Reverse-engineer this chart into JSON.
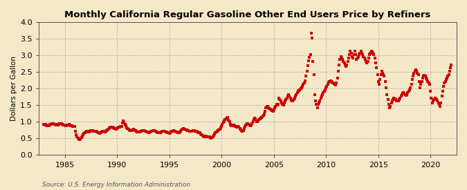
{
  "title": "Monthly California Regular Gasoline Other End Users Price by Refiners",
  "ylabel": "Dollars per Gallon",
  "source": "Source: U.S. Energy Information Administration",
  "background_color": "#f5e8c8",
  "marker_color": "#cc0000",
  "xlim_start": 1982.5,
  "xlim_end": 2022.5,
  "ylim": [
    0.0,
    4.0
  ],
  "yticks": [
    0.0,
    0.5,
    1.0,
    1.5,
    2.0,
    2.5,
    3.0,
    3.5,
    4.0
  ],
  "xticks": [
    1985,
    1990,
    1995,
    2000,
    2005,
    2010,
    2015,
    2020
  ],
  "data": [
    [
      1983.0,
      0.92
    ],
    [
      1983.08,
      0.91
    ],
    [
      1983.17,
      0.93
    ],
    [
      1983.25,
      0.9
    ],
    [
      1983.33,
      0.89
    ],
    [
      1983.42,
      0.88
    ],
    [
      1983.5,
      0.89
    ],
    [
      1983.58,
      0.92
    ],
    [
      1983.67,
      0.93
    ],
    [
      1983.75,
      0.94
    ],
    [
      1983.83,
      0.95
    ],
    [
      1983.92,
      0.94
    ],
    [
      1984.0,
      0.93
    ],
    [
      1984.08,
      0.92
    ],
    [
      1984.17,
      0.91
    ],
    [
      1984.25,
      0.92
    ],
    [
      1984.33,
      0.91
    ],
    [
      1984.42,
      0.93
    ],
    [
      1984.5,
      0.94
    ],
    [
      1984.58,
      0.95
    ],
    [
      1984.67,
      0.94
    ],
    [
      1984.75,
      0.92
    ],
    [
      1984.83,
      0.91
    ],
    [
      1984.92,
      0.9
    ],
    [
      1985.0,
      0.9
    ],
    [
      1985.08,
      0.89
    ],
    [
      1985.17,
      0.89
    ],
    [
      1985.25,
      0.9
    ],
    [
      1985.33,
      0.91
    ],
    [
      1985.42,
      0.92
    ],
    [
      1985.5,
      0.91
    ],
    [
      1985.58,
      0.89
    ],
    [
      1985.67,
      0.88
    ],
    [
      1985.75,
      0.87
    ],
    [
      1985.83,
      0.87
    ],
    [
      1985.92,
      0.86
    ],
    [
      1986.0,
      0.72
    ],
    [
      1986.08,
      0.62
    ],
    [
      1986.17,
      0.55
    ],
    [
      1986.25,
      0.5
    ],
    [
      1986.33,
      0.48
    ],
    [
      1986.42,
      0.47
    ],
    [
      1986.5,
      0.48
    ],
    [
      1986.58,
      0.52
    ],
    [
      1986.67,
      0.57
    ],
    [
      1986.75,
      0.62
    ],
    [
      1986.83,
      0.65
    ],
    [
      1986.92,
      0.68
    ],
    [
      1987.0,
      0.7
    ],
    [
      1987.08,
      0.72
    ],
    [
      1987.17,
      0.71
    ],
    [
      1987.25,
      0.7
    ],
    [
      1987.33,
      0.69
    ],
    [
      1987.42,
      0.71
    ],
    [
      1987.5,
      0.73
    ],
    [
      1987.58,
      0.74
    ],
    [
      1987.67,
      0.73
    ],
    [
      1987.75,
      0.72
    ],
    [
      1987.83,
      0.71
    ],
    [
      1987.92,
      0.72
    ],
    [
      1988.0,
      0.71
    ],
    [
      1988.08,
      0.7
    ],
    [
      1988.17,
      0.68
    ],
    [
      1988.25,
      0.67
    ],
    [
      1988.33,
      0.66
    ],
    [
      1988.42,
      0.67
    ],
    [
      1988.5,
      0.69
    ],
    [
      1988.58,
      0.71
    ],
    [
      1988.67,
      0.72
    ],
    [
      1988.75,
      0.71
    ],
    [
      1988.83,
      0.7
    ],
    [
      1988.92,
      0.71
    ],
    [
      1989.0,
      0.73
    ],
    [
      1989.08,
      0.76
    ],
    [
      1989.17,
      0.78
    ],
    [
      1989.25,
      0.81
    ],
    [
      1989.33,
      0.83
    ],
    [
      1989.42,
      0.84
    ],
    [
      1989.5,
      0.85
    ],
    [
      1989.58,
      0.84
    ],
    [
      1989.67,
      0.82
    ],
    [
      1989.75,
      0.8
    ],
    [
      1989.83,
      0.79
    ],
    [
      1989.92,
      0.78
    ],
    [
      1990.0,
      0.8
    ],
    [
      1990.08,
      0.82
    ],
    [
      1990.17,
      0.84
    ],
    [
      1990.25,
      0.85
    ],
    [
      1990.33,
      0.86
    ],
    [
      1990.42,
      0.87
    ],
    [
      1990.5,
      0.96
    ],
    [
      1990.58,
      1.02
    ],
    [
      1990.67,
      0.98
    ],
    [
      1990.75,
      0.93
    ],
    [
      1990.83,
      0.88
    ],
    [
      1990.92,
      0.83
    ],
    [
      1991.0,
      0.79
    ],
    [
      1991.08,
      0.77
    ],
    [
      1991.17,
      0.75
    ],
    [
      1991.25,
      0.74
    ],
    [
      1991.33,
      0.73
    ],
    [
      1991.42,
      0.74
    ],
    [
      1991.5,
      0.76
    ],
    [
      1991.58,
      0.77
    ],
    [
      1991.67,
      0.76
    ],
    [
      1991.75,
      0.74
    ],
    [
      1991.83,
      0.72
    ],
    [
      1991.92,
      0.7
    ],
    [
      1992.0,
      0.69
    ],
    [
      1992.08,
      0.69
    ],
    [
      1992.17,
      0.7
    ],
    [
      1992.25,
      0.71
    ],
    [
      1992.33,
      0.72
    ],
    [
      1992.42,
      0.73
    ],
    [
      1992.5,
      0.74
    ],
    [
      1992.58,
      0.73
    ],
    [
      1992.67,
      0.72
    ],
    [
      1992.75,
      0.71
    ],
    [
      1992.83,
      0.7
    ],
    [
      1992.92,
      0.69
    ],
    [
      1993.0,
      0.68
    ],
    [
      1993.08,
      0.69
    ],
    [
      1993.17,
      0.7
    ],
    [
      1993.25,
      0.72
    ],
    [
      1993.33,
      0.72
    ],
    [
      1993.42,
      0.73
    ],
    [
      1993.5,
      0.74
    ],
    [
      1993.58,
      0.73
    ],
    [
      1993.67,
      0.71
    ],
    [
      1993.75,
      0.7
    ],
    [
      1993.83,
      0.69
    ],
    [
      1993.92,
      0.68
    ],
    [
      1994.0,
      0.67
    ],
    [
      1994.08,
      0.67
    ],
    [
      1994.17,
      0.68
    ],
    [
      1994.25,
      0.7
    ],
    [
      1994.33,
      0.71
    ],
    [
      1994.42,
      0.72
    ],
    [
      1994.5,
      0.72
    ],
    [
      1994.58,
      0.71
    ],
    [
      1994.67,
      0.7
    ],
    [
      1994.75,
      0.69
    ],
    [
      1994.83,
      0.68
    ],
    [
      1994.92,
      0.67
    ],
    [
      1995.0,
      0.66
    ],
    [
      1995.08,
      0.67
    ],
    [
      1995.17,
      0.69
    ],
    [
      1995.25,
      0.71
    ],
    [
      1995.33,
      0.72
    ],
    [
      1995.42,
      0.73
    ],
    [
      1995.5,
      0.72
    ],
    [
      1995.58,
      0.71
    ],
    [
      1995.67,
      0.7
    ],
    [
      1995.75,
      0.69
    ],
    [
      1995.83,
      0.68
    ],
    [
      1995.92,
      0.67
    ],
    [
      1996.0,
      0.69
    ],
    [
      1996.08,
      0.72
    ],
    [
      1996.17,
      0.75
    ],
    [
      1996.25,
      0.78
    ],
    [
      1996.33,
      0.79
    ],
    [
      1996.42,
      0.78
    ],
    [
      1996.5,
      0.77
    ],
    [
      1996.58,
      0.76
    ],
    [
      1996.67,
      0.75
    ],
    [
      1996.75,
      0.74
    ],
    [
      1996.83,
      0.73
    ],
    [
      1996.92,
      0.72
    ],
    [
      1997.0,
      0.71
    ],
    [
      1997.08,
      0.71
    ],
    [
      1997.17,
      0.72
    ],
    [
      1997.25,
      0.74
    ],
    [
      1997.33,
      0.74
    ],
    [
      1997.42,
      0.73
    ],
    [
      1997.5,
      0.72
    ],
    [
      1997.58,
      0.71
    ],
    [
      1997.67,
      0.7
    ],
    [
      1997.75,
      0.69
    ],
    [
      1997.83,
      0.68
    ],
    [
      1997.92,
      0.67
    ],
    [
      1998.0,
      0.64
    ],
    [
      1998.08,
      0.61
    ],
    [
      1998.17,
      0.59
    ],
    [
      1998.25,
      0.57
    ],
    [
      1998.33,
      0.56
    ],
    [
      1998.42,
      0.56
    ],
    [
      1998.5,
      0.57
    ],
    [
      1998.58,
      0.56
    ],
    [
      1998.67,
      0.56
    ],
    [
      1998.75,
      0.55
    ],
    [
      1998.83,
      0.54
    ],
    [
      1998.92,
      0.52
    ],
    [
      1999.0,
      0.51
    ],
    [
      1999.08,
      0.52
    ],
    [
      1999.17,
      0.54
    ],
    [
      1999.25,
      0.59
    ],
    [
      1999.33,
      0.64
    ],
    [
      1999.42,
      0.67
    ],
    [
      1999.5,
      0.69
    ],
    [
      1999.58,
      0.71
    ],
    [
      1999.67,
      0.73
    ],
    [
      1999.75,
      0.75
    ],
    [
      1999.83,
      0.77
    ],
    [
      1999.92,
      0.81
    ],
    [
      2000.0,
      0.86
    ],
    [
      2000.08,
      0.92
    ],
    [
      2000.17,
      0.98
    ],
    [
      2000.25,
      1.02
    ],
    [
      2000.33,
      1.06
    ],
    [
      2000.42,
      1.09
    ],
    [
      2000.5,
      1.11
    ],
    [
      2000.58,
      1.13
    ],
    [
      2000.67,
      1.04
    ],
    [
      2000.75,
      1.0
    ],
    [
      2000.83,
      0.93
    ],
    [
      2000.92,
      0.88
    ],
    [
      2001.0,
      0.88
    ],
    [
      2001.08,
      0.9
    ],
    [
      2001.17,
      0.91
    ],
    [
      2001.25,
      0.88
    ],
    [
      2001.33,
      0.86
    ],
    [
      2001.42,
      0.84
    ],
    [
      2001.5,
      0.86
    ],
    [
      2001.58,
      0.87
    ],
    [
      2001.67,
      0.85
    ],
    [
      2001.75,
      0.8
    ],
    [
      2001.83,
      0.76
    ],
    [
      2001.92,
      0.73
    ],
    [
      2002.0,
      0.72
    ],
    [
      2002.08,
      0.74
    ],
    [
      2002.17,
      0.79
    ],
    [
      2002.25,
      0.87
    ],
    [
      2002.33,
      0.91
    ],
    [
      2002.42,
      0.94
    ],
    [
      2002.5,
      0.94
    ],
    [
      2002.58,
      0.92
    ],
    [
      2002.67,
      0.91
    ],
    [
      2002.75,
      0.89
    ],
    [
      2002.83,
      0.91
    ],
    [
      2002.92,
      0.95
    ],
    [
      2003.0,
      1.01
    ],
    [
      2003.08,
      1.07
    ],
    [
      2003.17,
      1.12
    ],
    [
      2003.25,
      1.09
    ],
    [
      2003.33,
      1.01
    ],
    [
      2003.42,
      1.01
    ],
    [
      2003.5,
      1.03
    ],
    [
      2003.58,
      1.06
    ],
    [
      2003.67,
      1.08
    ],
    [
      2003.75,
      1.11
    ],
    [
      2003.83,
      1.13
    ],
    [
      2003.92,
      1.16
    ],
    [
      2004.0,
      1.19
    ],
    [
      2004.08,
      1.24
    ],
    [
      2004.17,
      1.32
    ],
    [
      2004.25,
      1.43
    ],
    [
      2004.33,
      1.47
    ],
    [
      2004.42,
      1.46
    ],
    [
      2004.5,
      1.43
    ],
    [
      2004.58,
      1.41
    ],
    [
      2004.67,
      1.39
    ],
    [
      2004.75,
      1.36
    ],
    [
      2004.83,
      1.33
    ],
    [
      2004.92,
      1.31
    ],
    [
      2005.0,
      1.36
    ],
    [
      2005.08,
      1.42
    ],
    [
      2005.17,
      1.47
    ],
    [
      2005.25,
      1.52
    ],
    [
      2005.33,
      1.5
    ],
    [
      2005.42,
      1.52
    ],
    [
      2005.5,
      1.71
    ],
    [
      2005.58,
      1.67
    ],
    [
      2005.67,
      1.62
    ],
    [
      2005.75,
      1.57
    ],
    [
      2005.83,
      1.52
    ],
    [
      2005.92,
      1.51
    ],
    [
      2006.0,
      1.56
    ],
    [
      2006.08,
      1.62
    ],
    [
      2006.17,
      1.67
    ],
    [
      2006.25,
      1.72
    ],
    [
      2006.33,
      1.77
    ],
    [
      2006.42,
      1.82
    ],
    [
      2006.5,
      1.77
    ],
    [
      2006.58,
      1.72
    ],
    [
      2006.67,
      1.66
    ],
    [
      2006.75,
      1.63
    ],
    [
      2006.83,
      1.64
    ],
    [
      2006.92,
      1.67
    ],
    [
      2007.0,
      1.72
    ],
    [
      2007.08,
      1.77
    ],
    [
      2007.17,
      1.82
    ],
    [
      2007.25,
      1.87
    ],
    [
      2007.33,
      1.92
    ],
    [
      2007.42,
      1.95
    ],
    [
      2007.5,
      1.97
    ],
    [
      2007.58,
      2.0
    ],
    [
      2007.67,
      2.02
    ],
    [
      2007.75,
      2.07
    ],
    [
      2007.83,
      2.13
    ],
    [
      2007.92,
      2.18
    ],
    [
      2008.0,
      2.23
    ],
    [
      2008.08,
      2.38
    ],
    [
      2008.17,
      2.53
    ],
    [
      2008.25,
      2.68
    ],
    [
      2008.33,
      2.83
    ],
    [
      2008.42,
      2.93
    ],
    [
      2008.5,
      3.03
    ],
    [
      2008.58,
      3.67
    ],
    [
      2008.67,
      3.52
    ],
    [
      2008.75,
      2.82
    ],
    [
      2008.83,
      2.42
    ],
    [
      2008.92,
      1.82
    ],
    [
      2009.0,
      1.62
    ],
    [
      2009.08,
      1.52
    ],
    [
      2009.17,
      1.42
    ],
    [
      2009.25,
      1.52
    ],
    [
      2009.33,
      1.57
    ],
    [
      2009.42,
      1.62
    ],
    [
      2009.5,
      1.72
    ],
    [
      2009.58,
      1.77
    ],
    [
      2009.67,
      1.82
    ],
    [
      2009.75,
      1.87
    ],
    [
      2009.83,
      1.92
    ],
    [
      2009.92,
      1.97
    ],
    [
      2010.0,
      2.02
    ],
    [
      2010.08,
      2.07
    ],
    [
      2010.17,
      2.12
    ],
    [
      2010.25,
      2.2
    ],
    [
      2010.33,
      2.22
    ],
    [
      2010.42,
      2.24
    ],
    [
      2010.5,
      2.22
    ],
    [
      2010.58,
      2.2
    ],
    [
      2010.67,
      2.17
    ],
    [
      2010.75,
      2.14
    ],
    [
      2010.83,
      2.12
    ],
    [
      2010.92,
      2.1
    ],
    [
      2011.0,
      2.17
    ],
    [
      2011.08,
      2.32
    ],
    [
      2011.17,
      2.52
    ],
    [
      2011.25,
      2.72
    ],
    [
      2011.33,
      2.87
    ],
    [
      2011.42,
      2.97
    ],
    [
      2011.5,
      2.92
    ],
    [
      2011.58,
      2.87
    ],
    [
      2011.67,
      2.82
    ],
    [
      2011.75,
      2.77
    ],
    [
      2011.83,
      2.72
    ],
    [
      2011.92,
      2.67
    ],
    [
      2012.0,
      2.72
    ],
    [
      2012.08,
      2.82
    ],
    [
      2012.17,
      2.92
    ],
    [
      2012.25,
      3.02
    ],
    [
      2012.33,
      3.12
    ],
    [
      2012.42,
      3.07
    ],
    [
      2012.5,
      2.97
    ],
    [
      2012.58,
      2.92
    ],
    [
      2012.67,
      3.02
    ],
    [
      2012.75,
      3.12
    ],
    [
      2012.83,
      3.02
    ],
    [
      2012.92,
      2.87
    ],
    [
      2013.0,
      2.92
    ],
    [
      2013.08,
      2.97
    ],
    [
      2013.17,
      3.02
    ],
    [
      2013.25,
      3.07
    ],
    [
      2013.33,
      3.12
    ],
    [
      2013.42,
      3.07
    ],
    [
      2013.5,
      3.02
    ],
    [
      2013.58,
      2.97
    ],
    [
      2013.67,
      2.92
    ],
    [
      2013.75,
      2.87
    ],
    [
      2013.83,
      2.82
    ],
    [
      2013.92,
      2.77
    ],
    [
      2014.0,
      2.82
    ],
    [
      2014.08,
      2.92
    ],
    [
      2014.17,
      3.02
    ],
    [
      2014.25,
      3.07
    ],
    [
      2014.33,
      3.12
    ],
    [
      2014.42,
      3.1
    ],
    [
      2014.5,
      3.07
    ],
    [
      2014.58,
      3.02
    ],
    [
      2014.67,
      2.92
    ],
    [
      2014.75,
      2.77
    ],
    [
      2014.83,
      2.62
    ],
    [
      2014.92,
      2.42
    ],
    [
      2015.0,
      2.22
    ],
    [
      2015.08,
      2.12
    ],
    [
      2015.17,
      2.27
    ],
    [
      2015.25,
      2.42
    ],
    [
      2015.33,
      2.52
    ],
    [
      2015.42,
      2.47
    ],
    [
      2015.5,
      2.42
    ],
    [
      2015.58,
      2.37
    ],
    [
      2015.67,
      2.22
    ],
    [
      2015.75,
      2.02
    ],
    [
      2015.83,
      1.82
    ],
    [
      2015.92,
      1.67
    ],
    [
      2016.0,
      1.52
    ],
    [
      2016.08,
      1.42
    ],
    [
      2016.17,
      1.47
    ],
    [
      2016.25,
      1.57
    ],
    [
      2016.33,
      1.62
    ],
    [
      2016.42,
      1.67
    ],
    [
      2016.5,
      1.72
    ],
    [
      2016.58,
      1.7
    ],
    [
      2016.67,
      1.67
    ],
    [
      2016.75,
      1.64
    ],
    [
      2016.83,
      1.62
    ],
    [
      2016.92,
      1.64
    ],
    [
      2017.0,
      1.67
    ],
    [
      2017.08,
      1.72
    ],
    [
      2017.17,
      1.77
    ],
    [
      2017.25,
      1.82
    ],
    [
      2017.33,
      1.85
    ],
    [
      2017.42,
      1.87
    ],
    [
      2017.5,
      1.85
    ],
    [
      2017.58,
      1.82
    ],
    [
      2017.67,
      1.8
    ],
    [
      2017.75,
      1.82
    ],
    [
      2017.83,
      1.87
    ],
    [
      2017.92,
      1.92
    ],
    [
      2018.0,
      1.97
    ],
    [
      2018.08,
      2.02
    ],
    [
      2018.17,
      2.12
    ],
    [
      2018.25,
      2.27
    ],
    [
      2018.33,
      2.37
    ],
    [
      2018.42,
      2.47
    ],
    [
      2018.5,
      2.52
    ],
    [
      2018.58,
      2.57
    ],
    [
      2018.67,
      2.52
    ],
    [
      2018.75,
      2.47
    ],
    [
      2018.83,
      2.42
    ],
    [
      2018.92,
      2.22
    ],
    [
      2019.0,
      2.02
    ],
    [
      2019.08,
      2.12
    ],
    [
      2019.17,
      2.22
    ],
    [
      2019.25,
      2.32
    ],
    [
      2019.33,
      2.37
    ],
    [
      2019.42,
      2.4
    ],
    [
      2019.5,
      2.37
    ],
    [
      2019.58,
      2.32
    ],
    [
      2019.67,
      2.27
    ],
    [
      2019.75,
      2.22
    ],
    [
      2019.83,
      2.17
    ],
    [
      2019.92,
      2.12
    ],
    [
      2020.0,
      1.92
    ],
    [
      2020.08,
      1.72
    ],
    [
      2020.17,
      1.57
    ],
    [
      2020.25,
      1.62
    ],
    [
      2020.33,
      1.67
    ],
    [
      2020.42,
      1.72
    ],
    [
      2020.5,
      1.7
    ],
    [
      2020.58,
      1.67
    ],
    [
      2020.67,
      1.62
    ],
    [
      2020.75,
      1.57
    ],
    [
      2020.83,
      1.52
    ],
    [
      2020.92,
      1.47
    ],
    [
      2021.0,
      1.57
    ],
    [
      2021.08,
      1.77
    ],
    [
      2021.17,
      1.92
    ],
    [
      2021.25,
      2.07
    ],
    [
      2021.33,
      2.17
    ],
    [
      2021.42,
      2.22
    ],
    [
      2021.5,
      2.27
    ],
    [
      2021.58,
      2.32
    ],
    [
      2021.67,
      2.37
    ],
    [
      2021.75,
      2.42
    ],
    [
      2021.83,
      2.52
    ],
    [
      2021.92,
      2.62
    ],
    [
      2022.0,
      2.72
    ]
  ]
}
